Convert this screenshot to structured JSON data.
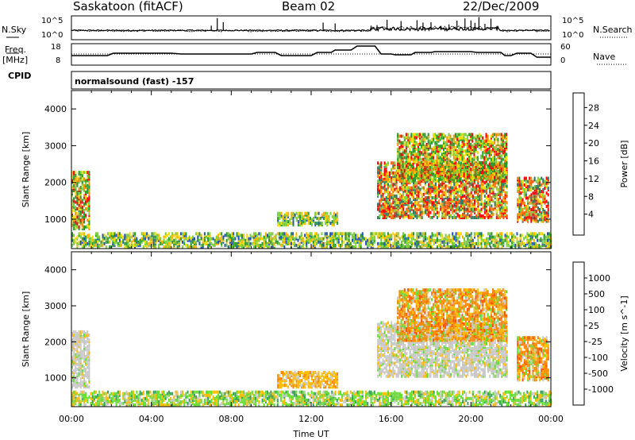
{
  "header": {
    "station": "Saskatoon (fitACF)",
    "beam": "Beam 02",
    "date": "22/Dec/2009"
  },
  "top_panels": {
    "nsky_label": "N.Sky",
    "nsearch_label": "N.Search",
    "freq_label": "Freq.",
    "freq_unit": "[MHz]",
    "nave_label": "Nave",
    "cpid_label": "CPID",
    "cpid_value": "normalsound (fast) -157",
    "noise_ticks_left": [
      "10^5",
      "10^0"
    ],
    "noise_ticks_right": [
      "10^5",
      "10^0"
    ],
    "freq_ticks": [
      "18",
      "8"
    ],
    "nave_ticks": [
      "60",
      "0"
    ]
  },
  "colorbars": {
    "power": {
      "label": "Power [dB]",
      "ticks": [
        "28",
        "24",
        "20",
        "16",
        "12",
        "8",
        "4"
      ],
      "colors": [
        "#ff0000",
        "#ff5500",
        "#ff8c00",
        "#ffb300",
        "#f5dc00",
        "#7ccc3d",
        "#2a9a2a",
        "#2d7a60",
        "#2255b8",
        "#0000ff"
      ]
    },
    "velocity": {
      "label": "Velocity [m s^-1]",
      "ticks": [
        "1000",
        "500",
        "100",
        "25",
        "-25",
        "-100",
        "-500",
        "-1000"
      ],
      "colors": [
        "#2a2ab8",
        "#2f6fb0",
        "#3ba05a",
        "#66dd33",
        "#c8c8c8",
        "#ffbb00",
        "#ff8800",
        "#ff5500",
        "#ff1a00"
      ]
    }
  },
  "chart_data": [
    {
      "type": "heatmap",
      "name_hint": "power",
      "ylabel": "Slant Range [km]",
      "yticks": [
        1000,
        2000,
        3000,
        4000
      ],
      "ylim": [
        200,
        4500
      ],
      "xlim": [
        0,
        24
      ],
      "xticks": [
        "00:00",
        "04:00",
        "08:00",
        "12:00",
        "16:00",
        "20:00",
        "00:00"
      ],
      "regions": [
        {
          "t0": 0.0,
          "t1": 0.9,
          "r0": 700,
          "r1": 2250,
          "level": "mid"
        },
        {
          "t0": 0.0,
          "t1": 24.0,
          "r0": 200,
          "r1": 600,
          "level": "low"
        },
        {
          "t0": 10.3,
          "t1": 13.3,
          "r0": 800,
          "r1": 1150,
          "level": "low"
        },
        {
          "t0": 15.3,
          "t1": 21.8,
          "r0": 1000,
          "r1": 2500,
          "level": "high"
        },
        {
          "t0": 16.3,
          "t1": 21.8,
          "r0": 2000,
          "r1": 3300,
          "level": "mid"
        },
        {
          "t0": 22.3,
          "t1": 23.9,
          "r0": 900,
          "r1": 2100,
          "level": "high"
        }
      ]
    },
    {
      "type": "heatmap",
      "name_hint": "velocity",
      "ylabel": "Slant Range [km]",
      "yticks": [
        1000,
        2000,
        3000,
        4000
      ],
      "ylim": [
        200,
        4500
      ],
      "xlim": [
        0,
        24
      ],
      "xlabel": "Time UT",
      "xticks": [
        "00:00",
        "04:00",
        "08:00",
        "12:00",
        "16:00",
        "20:00",
        "00:00"
      ],
      "regions": [
        {
          "t0": 0.0,
          "t1": 0.9,
          "r0": 700,
          "r1": 2250,
          "level": "ground"
        },
        {
          "t0": 0.0,
          "t1": 24.0,
          "r0": 200,
          "r1": 600,
          "level": "slowpos"
        },
        {
          "t0": 10.3,
          "t1": 13.3,
          "r0": 700,
          "r1": 1150,
          "level": "slowneg"
        },
        {
          "t0": 15.3,
          "t1": 21.8,
          "r0": 1000,
          "r1": 2500,
          "level": "ground"
        },
        {
          "t0": 16.3,
          "t1": 21.8,
          "r0": 2000,
          "r1": 3400,
          "level": "neg"
        },
        {
          "t0": 22.3,
          "t1": 23.9,
          "r0": 900,
          "r1": 2100,
          "level": "neg"
        }
      ]
    }
  ]
}
